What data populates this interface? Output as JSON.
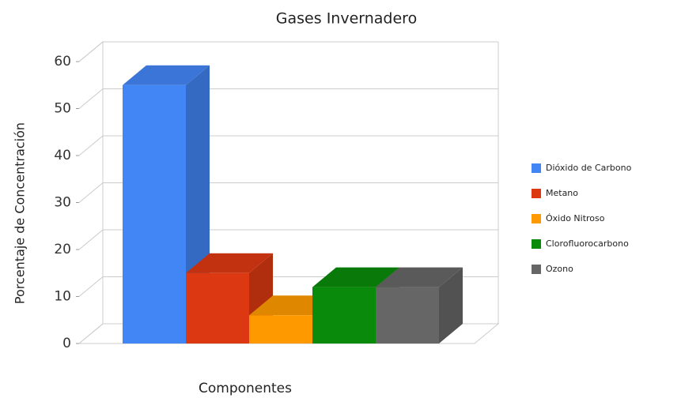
{
  "chart_data": {
    "type": "bar3d",
    "title": "Gases Invernadero",
    "x_label": "Componentes",
    "y_label": "Porcentaje de Concentración",
    "categories": [
      null
    ],
    "series": [
      {
        "name": "Dióxido de Carbono",
        "color": "#4285f4",
        "values": [
          55
        ]
      },
      {
        "name": "Metano",
        "color": "#dc3912",
        "values": [
          15
        ]
      },
      {
        "name": "Óxido Nitroso",
        "color": "#ff9900",
        "values": [
          6
        ]
      },
      {
        "name": "Clorofluorocarbono",
        "color": "#0a8a0a",
        "values": [
          12
        ]
      },
      {
        "name": "Ozono",
        "color": "#666666",
        "values": [
          12
        ]
      }
    ],
    "ylim": [
      0,
      60
    ],
    "yticks": [
      0,
      10,
      20,
      30,
      40,
      50,
      60
    ],
    "grid": true,
    "legend": "right"
  }
}
